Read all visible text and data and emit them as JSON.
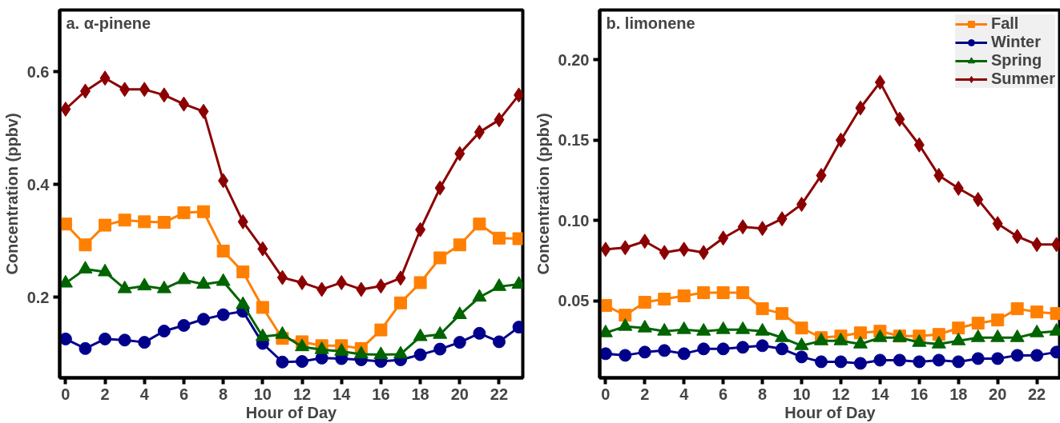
{
  "chart_data": [
    {
      "type": "line",
      "title": "a. α-pinene",
      "xlabel": "Hour of Day",
      "ylabel": "Concentration (ppbv)",
      "x": [
        0,
        1,
        2,
        3,
        4,
        5,
        6,
        7,
        8,
        9,
        10,
        11,
        12,
        13,
        14,
        15,
        16,
        17,
        18,
        19,
        20,
        21,
        22,
        23
      ],
      "xlim": [
        -0.3,
        23.2
      ],
      "xticks": [
        0,
        2,
        4,
        6,
        8,
        10,
        12,
        14,
        16,
        18,
        20,
        22
      ],
      "ylim": [
        0.057,
        0.71
      ],
      "yticks": [
        0.2,
        0.4,
        0.6
      ],
      "grid": false,
      "legend": false,
      "line_style": "solid",
      "series": [
        {
          "color": "#ff7f00",
          "marker": "square",
          "values": [
            0.33,
            0.293,
            0.328,
            0.337,
            0.334,
            0.333,
            0.35,
            0.352,
            0.282,
            0.245,
            0.182,
            0.127,
            0.121,
            0.114,
            0.114,
            0.109,
            0.142,
            0.19,
            0.226,
            0.27,
            0.293,
            0.33,
            0.305,
            0.304
          ]
        },
        {
          "color": "#00008b",
          "marker": "circle",
          "values": [
            0.126,
            0.109,
            0.126,
            0.124,
            0.12,
            0.14,
            0.15,
            0.161,
            0.169,
            0.175,
            0.118,
            0.085,
            0.086,
            0.092,
            0.091,
            0.089,
            0.086,
            0.089,
            0.098,
            0.108,
            0.12,
            0.136,
            0.121,
            0.147
          ]
        },
        {
          "color": "#006400",
          "marker": "triangle",
          "values": [
            0.225,
            0.25,
            0.245,
            0.215,
            0.22,
            0.215,
            0.231,
            0.223,
            0.228,
            0.187,
            0.13,
            0.134,
            0.112,
            0.107,
            0.104,
            0.099,
            0.098,
            0.099,
            0.13,
            0.134,
            0.169,
            0.2,
            0.219,
            0.223
          ]
        },
        {
          "color": "#8b0000",
          "marker": "diamond",
          "values": [
            0.534,
            0.566,
            0.589,
            0.569,
            0.569,
            0.559,
            0.543,
            0.53,
            0.407,
            0.334,
            0.286,
            0.235,
            0.226,
            0.214,
            0.226,
            0.214,
            0.22,
            0.234,
            0.32,
            0.394,
            0.455,
            0.493,
            0.515,
            0.559
          ]
        }
      ]
    },
    {
      "type": "line",
      "title": "b. limonene",
      "xlabel": "Hour of Day",
      "ylabel": "Concentration (ppbv)",
      "x": [
        0,
        1,
        2,
        3,
        4,
        5,
        6,
        7,
        8,
        9,
        10,
        11,
        12,
        13,
        14,
        15,
        16,
        17,
        18,
        19,
        20,
        21,
        22,
        23
      ],
      "xlim": [
        -0.3,
        23.2
      ],
      "xticks": [
        0,
        2,
        4,
        6,
        8,
        10,
        12,
        14,
        16,
        18,
        20,
        22
      ],
      "ylim": [
        0.002,
        0.231
      ],
      "yticks": [
        {
          "value": 0.05,
          "label": "0.05"
        },
        {
          "value": 0.1,
          "label": "0.10"
        },
        {
          "value": 0.15,
          "label": "0.15"
        },
        {
          "value": 0.2,
          "label": "0.20"
        }
      ],
      "grid": false,
      "legend": "top right",
      "line_style": "solid",
      "series": [
        {
          "name": "Fall",
          "color": "#ff7f00",
          "marker": "square",
          "values": [
            0.047,
            0.041,
            0.049,
            0.051,
            0.053,
            0.055,
            0.055,
            0.055,
            0.045,
            0.042,
            0.033,
            0.027,
            0.028,
            0.03,
            0.031,
            0.028,
            0.028,
            0.029,
            0.033,
            0.036,
            0.038,
            0.045,
            0.043,
            0.042
          ]
        },
        {
          "name": "Winter",
          "color": "#00008b",
          "marker": "circle",
          "values": [
            0.017,
            0.016,
            0.018,
            0.019,
            0.017,
            0.02,
            0.02,
            0.021,
            0.022,
            0.02,
            0.015,
            0.012,
            0.012,
            0.011,
            0.013,
            0.013,
            0.012,
            0.013,
            0.012,
            0.014,
            0.014,
            0.016,
            0.016,
            0.018
          ]
        },
        {
          "name": "Spring",
          "color": "#006400",
          "marker": "triangle",
          "values": [
            0.03,
            0.034,
            0.033,
            0.031,
            0.032,
            0.031,
            0.032,
            0.032,
            0.031,
            0.027,
            0.022,
            0.025,
            0.025,
            0.023,
            0.027,
            0.027,
            0.024,
            0.023,
            0.025,
            0.027,
            0.027,
            0.027,
            0.03,
            0.031
          ]
        },
        {
          "name": "Summer",
          "color": "#8b0000",
          "marker": "diamond",
          "values": [
            0.082,
            0.083,
            0.087,
            0.08,
            0.082,
            0.08,
            0.089,
            0.096,
            0.095,
            0.101,
            0.11,
            0.128,
            0.15,
            0.17,
            0.186,
            0.163,
            0.147,
            0.128,
            0.12,
            0.113,
            0.098,
            0.09,
            0.085,
            0.085
          ]
        }
      ]
    }
  ]
}
